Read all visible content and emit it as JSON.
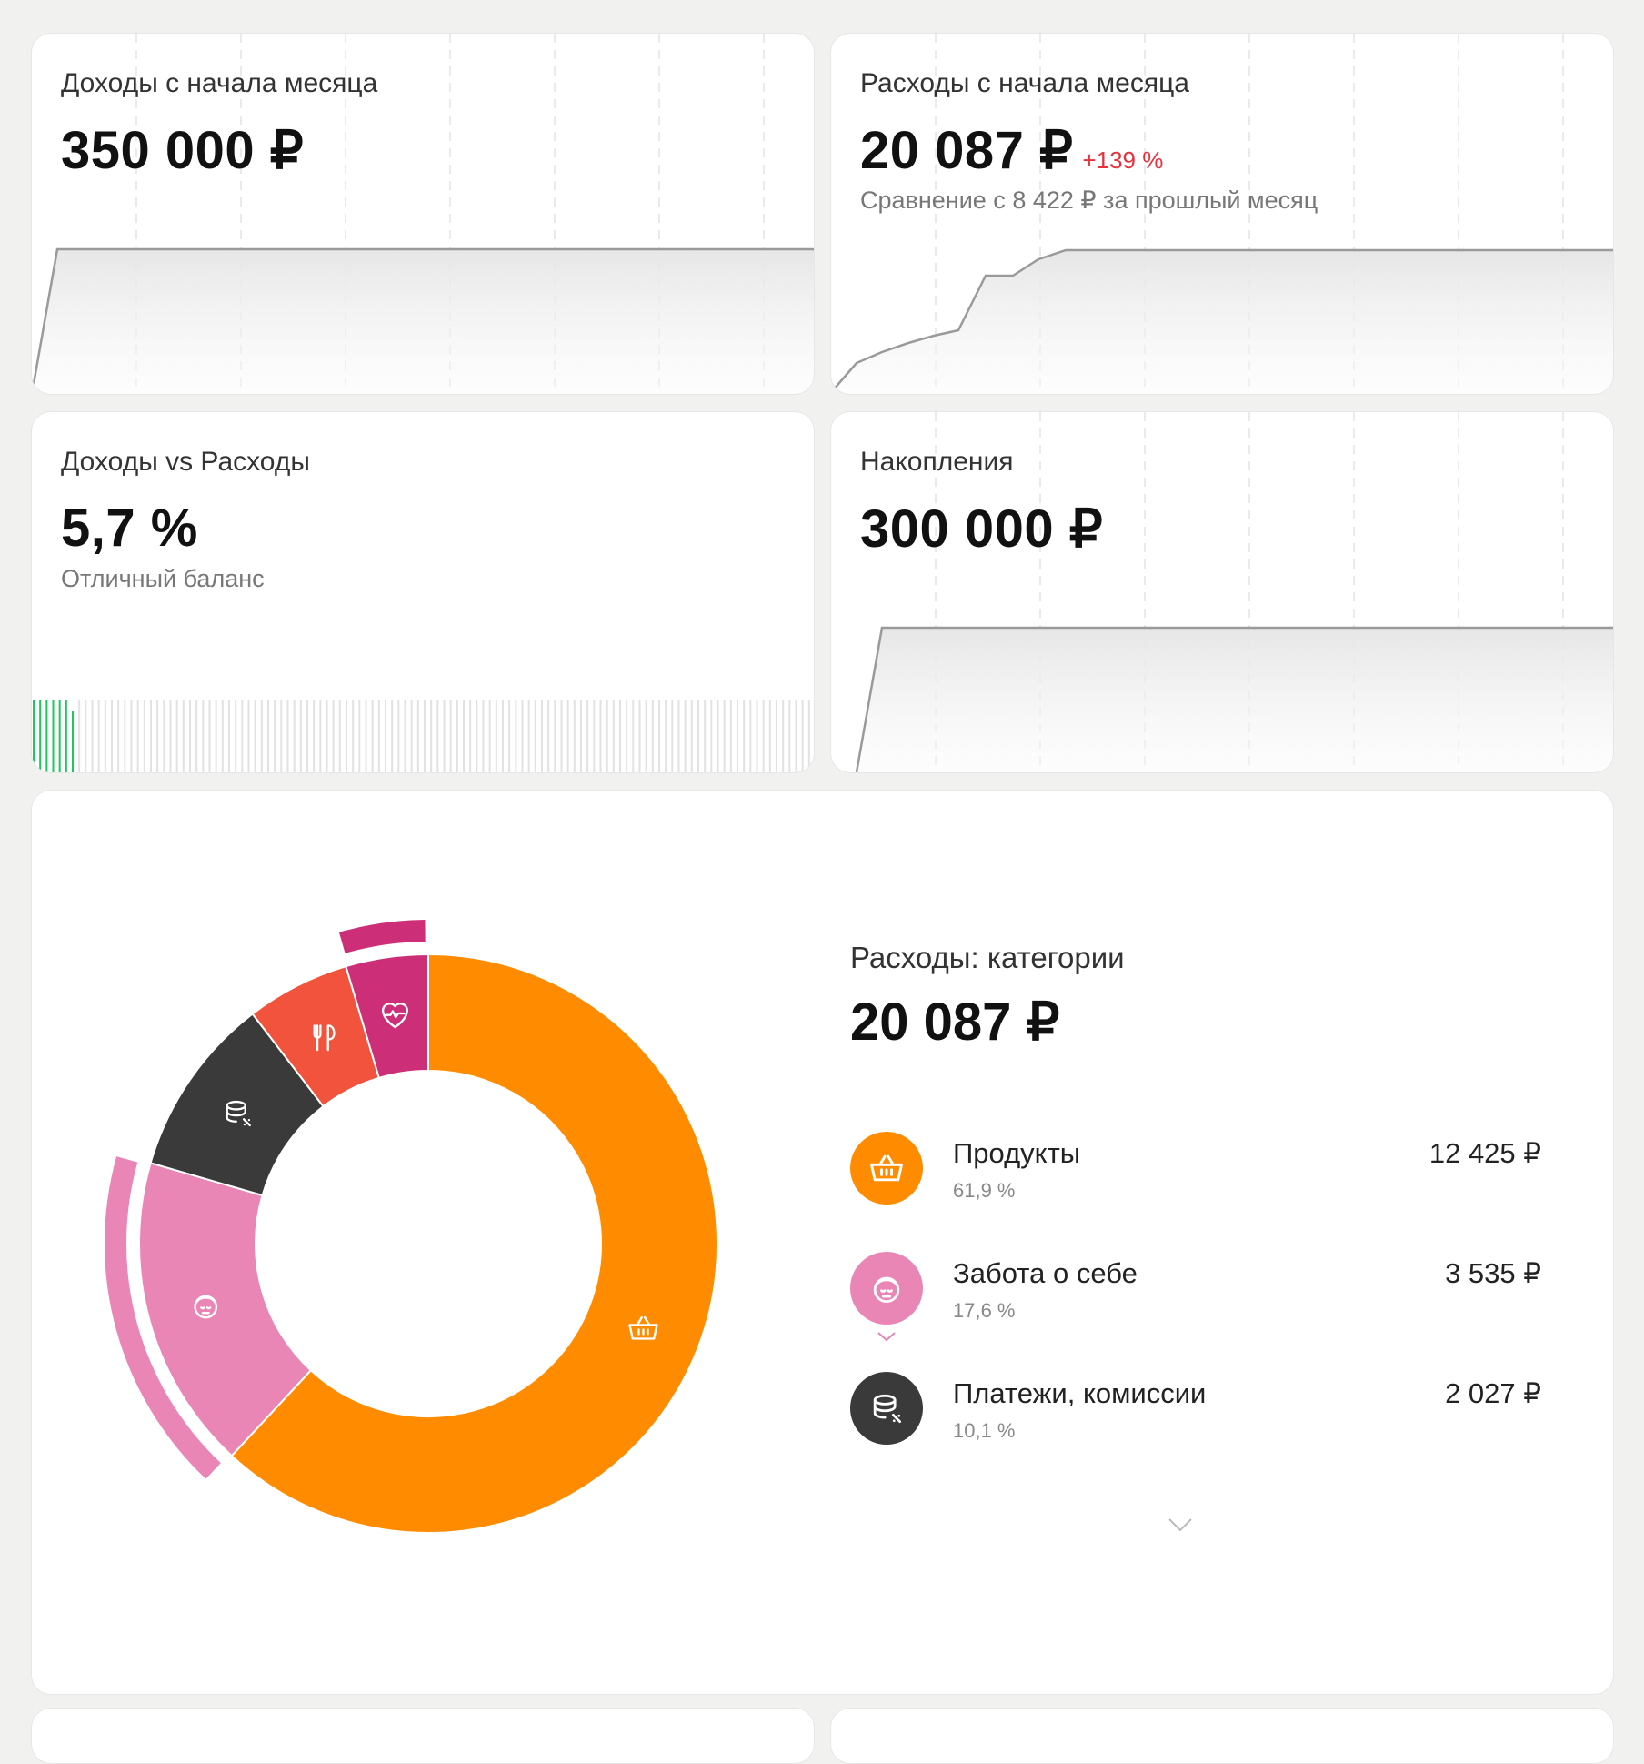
{
  "income": {
    "title": "Доходы с начала месяца",
    "value": "350 000 ₽"
  },
  "expenses": {
    "title": "Расходы с начала месяца",
    "value": "20 087 ₽",
    "delta": "+139 %",
    "comparison": "Сравнение с 8 422 ₽ за прошлый месяц"
  },
  "balance": {
    "title": "Доходы vs Расходы",
    "value": "5,7 %",
    "status": "Отличный баланс",
    "progress_fraction": 0.057
  },
  "savings": {
    "title": "Накопления",
    "value": "300 000 ₽"
  },
  "categories": {
    "title": "Расходы: категории",
    "total": "20 087 ₽",
    "items": [
      {
        "name": "Продукты",
        "percent": "61,9 %",
        "amount": "12 425 ₽",
        "color": "#ff8c00",
        "icon": "basket-icon"
      },
      {
        "name": "Забота о себе",
        "percent": "17,6 %",
        "amount": "3 535 ₽",
        "color": "#e986b5",
        "icon": "face-icon"
      },
      {
        "name": "Платежи, комиссии",
        "percent": "10,1 %",
        "amount": "2 027 ₽",
        "color": "#3a3a3a",
        "icon": "coins-icon"
      }
    ]
  },
  "chart_data": {
    "type": "pie",
    "title": "Расходы: категории",
    "categories": [
      "Продукты",
      "Забота о себе",
      "Платежи, комиссии",
      "Рестораны",
      "Здоровье"
    ],
    "values": [
      61.9,
      17.6,
      10.1,
      5.8,
      4.6
    ],
    "colors": [
      "#ff8c00",
      "#e986b5",
      "#3a3a3a",
      "#f2533c",
      "#cc2f78"
    ],
    "icons": [
      "basket-icon",
      "face-icon",
      "coins-icon",
      "restaurant-icon",
      "heart-pulse-icon"
    ]
  }
}
